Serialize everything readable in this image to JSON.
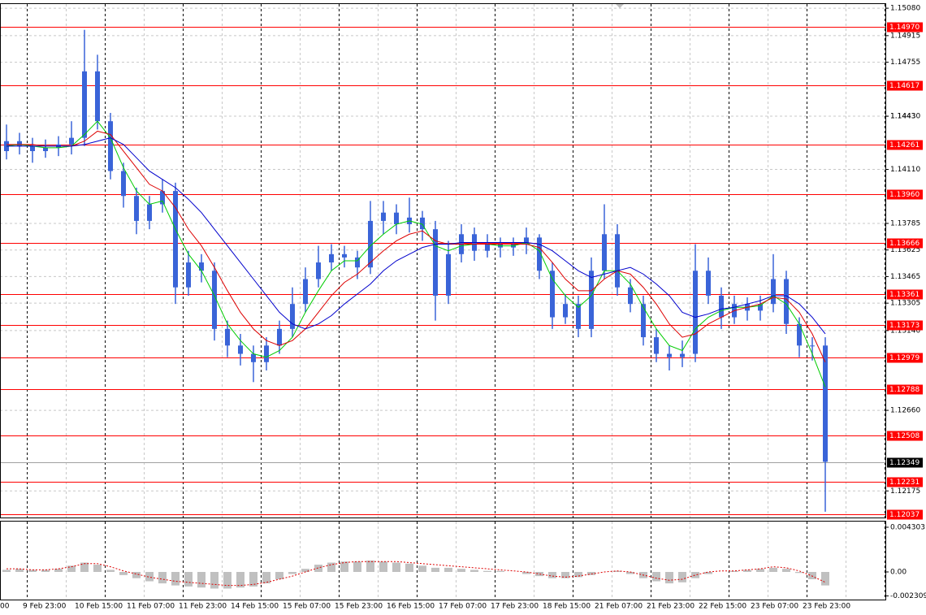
{
  "chart_data": [
    {
      "type": "candlestick",
      "open": [
        1.1422,
        1.1428,
        1.1425,
        1.1422,
        1.1424,
        1.1426,
        1.143,
        1.147,
        1.144,
        1.141,
        1.1395,
        1.138,
        1.139,
        1.1398,
        1.134,
        1.1355,
        1.135,
        1.1315,
        1.1305,
        1.13,
        1.1295,
        1.1305,
        1.1315,
        1.133,
        1.1345,
        1.1355,
        1.136,
        1.1358,
        1.1352,
        1.138,
        1.1385,
        1.1378,
        1.1382,
        1.1375,
        1.1335,
        1.136,
        1.1372,
        1.1362,
        1.1366,
        1.1364,
        1.1366,
        1.137,
        1.135,
        1.1322,
        1.133,
        1.1315,
        1.135,
        1.1372,
        1.134,
        1.133,
        1.131,
        1.13,
        1.1298,
        1.13,
        1.135,
        1.1335,
        1.1322,
        1.133,
        1.1326,
        1.133,
        1.1345,
        1.1318,
        1.1305,
        1.1305
      ],
      "high": [
        1.1438,
        1.1433,
        1.143,
        1.1429,
        1.1431,
        1.144,
        1.1495,
        1.148,
        1.1445,
        1.1415,
        1.14,
        1.1395,
        1.1405,
        1.1403,
        1.1362,
        1.136,
        1.1355,
        1.132,
        1.1312,
        1.1305,
        1.131,
        1.132,
        1.134,
        1.1352,
        1.1365,
        1.1366,
        1.1365,
        1.1362,
        1.1392,
        1.1392,
        1.139,
        1.1394,
        1.1386,
        1.138,
        1.1368,
        1.1378,
        1.1376,
        1.1372,
        1.137,
        1.137,
        1.1376,
        1.1372,
        1.1355,
        1.1336,
        1.1335,
        1.1358,
        1.139,
        1.1378,
        1.1345,
        1.1335,
        1.1315,
        1.1305,
        1.1308,
        1.1366,
        1.1358,
        1.134,
        1.1335,
        1.1334,
        1.1335,
        1.136,
        1.135,
        1.1322,
        1.131,
        1.131
      ],
      "low": [
        1.1417,
        1.142,
        1.1415,
        1.1418,
        1.1419,
        1.142,
        1.1425,
        1.1435,
        1.1405,
        1.1388,
        1.1372,
        1.1375,
        1.1385,
        1.133,
        1.1335,
        1.1343,
        1.1308,
        1.1298,
        1.1293,
        1.1283,
        1.129,
        1.13,
        1.131,
        1.1325,
        1.134,
        1.135,
        1.1352,
        1.1345,
        1.1348,
        1.1372,
        1.1372,
        1.1373,
        1.1368,
        1.132,
        1.133,
        1.1355,
        1.1356,
        1.1358,
        1.1358,
        1.1359,
        1.136,
        1.1345,
        1.1315,
        1.1318,
        1.131,
        1.131,
        1.1345,
        1.1335,
        1.1325,
        1.1305,
        1.1295,
        1.129,
        1.1292,
        1.1295,
        1.133,
        1.1315,
        1.1318,
        1.132,
        1.132,
        1.1325,
        1.1312,
        1.1298,
        1.1296,
        1.1205
      ],
      "close": [
        1.1428,
        1.1425,
        1.1422,
        1.1424,
        1.1426,
        1.143,
        1.147,
        1.144,
        1.141,
        1.1395,
        1.138,
        1.139,
        1.1398,
        1.134,
        1.1355,
        1.135,
        1.1315,
        1.1305,
        1.13,
        1.1295,
        1.1305,
        1.1315,
        1.133,
        1.1345,
        1.1355,
        1.136,
        1.1358,
        1.1352,
        1.138,
        1.1385,
        1.1378,
        1.1382,
        1.1375,
        1.1335,
        1.136,
        1.1372,
        1.1362,
        1.1366,
        1.1364,
        1.1366,
        1.137,
        1.135,
        1.1322,
        1.133,
        1.1315,
        1.135,
        1.1372,
        1.134,
        1.133,
        1.131,
        1.13,
        1.1298,
        1.13,
        1.135,
        1.1335,
        1.1322,
        1.133,
        1.1326,
        1.133,
        1.1345,
        1.1318,
        1.1305,
        1.1305,
        1.1235
      ],
      "color": "#3a64d8",
      "overlays": [
        {
          "color": "#00cc00",
          "values": [
            1.1425,
            1.1426,
            1.1425,
            1.1424,
            1.1424,
            1.1425,
            1.1432,
            1.144,
            1.143,
            1.1412,
            1.1398,
            1.139,
            1.1392,
            1.1375,
            1.136,
            1.135,
            1.1335,
            1.1318,
            1.1308,
            1.13,
            1.1298,
            1.1302,
            1.131,
            1.1325,
            1.1338,
            1.135,
            1.1356,
            1.1356,
            1.1365,
            1.1372,
            1.1378,
            1.138,
            1.1378,
            1.1365,
            1.1362,
            1.1365,
            1.1366,
            1.1366,
            1.1365,
            1.1365,
            1.1367,
            1.1362,
            1.1345,
            1.1335,
            1.1328,
            1.1335,
            1.135,
            1.135,
            1.1342,
            1.1328,
            1.1315,
            1.1305,
            1.1302,
            1.1315,
            1.1322,
            1.1326,
            1.1328,
            1.1328,
            1.1329,
            1.1335,
            1.133,
            1.1318,
            1.13,
            1.128
          ]
        },
        {
          "color": "#dd0000",
          "values": [
            1.1426,
            1.1426,
            1.1426,
            1.1425,
            1.1425,
            1.1425,
            1.1428,
            1.1434,
            1.1432,
            1.1422,
            1.1412,
            1.1402,
            1.1398,
            1.1388,
            1.1375,
            1.1365,
            1.1352,
            1.1338,
            1.1325,
            1.1315,
            1.1308,
            1.1305,
            1.1308,
            1.1315,
            1.1325,
            1.1335,
            1.1343,
            1.1348,
            1.1355,
            1.1362,
            1.1368,
            1.1372,
            1.1374,
            1.1368,
            1.1366,
            1.1366,
            1.1366,
            1.1366,
            1.1366,
            1.1366,
            1.1366,
            1.1364,
            1.1355,
            1.1345,
            1.1338,
            1.1338,
            1.1345,
            1.135,
            1.1348,
            1.134,
            1.133,
            1.1318,
            1.131,
            1.1312,
            1.1318,
            1.1322,
            1.1326,
            1.1328,
            1.133,
            1.1334,
            1.1333,
            1.1325,
            1.1312,
            1.1295
          ]
        },
        {
          "color": "#0000cc",
          "values": [
            1.1425,
            1.1425,
            1.1425,
            1.1425,
            1.1425,
            1.1425,
            1.1426,
            1.1428,
            1.143,
            1.1426,
            1.1418,
            1.141,
            1.1405,
            1.14,
            1.1393,
            1.1385,
            1.1375,
            1.1365,
            1.1355,
            1.1345,
            1.1335,
            1.1325,
            1.1318,
            1.1315,
            1.1318,
            1.1323,
            1.133,
            1.1336,
            1.1342,
            1.135,
            1.1356,
            1.136,
            1.1364,
            1.1366,
            1.1366,
            1.1367,
            1.1367,
            1.1367,
            1.1367,
            1.1367,
            1.1367,
            1.1366,
            1.1362,
            1.1356,
            1.135,
            1.1346,
            1.1348,
            1.135,
            1.1352,
            1.1348,
            1.1342,
            1.1335,
            1.1325,
            1.1322,
            1.1324,
            1.1327,
            1.1328,
            1.133,
            1.1332,
            1.1335,
            1.1335,
            1.133,
            1.1322,
            1.1312
          ]
        }
      ],
      "levels": {
        "color": "#ff0000",
        "values": [
          1.1497,
          1.14617,
          1.14261,
          1.1396,
          1.13666,
          1.13361,
          1.13173,
          1.12979,
          1.12788,
          1.12508,
          1.12231,
          1.12037
        ],
        "value_labels": [
          "1.14970",
          "1.14617",
          "1.14261",
          "1.13960",
          "1.13666",
          "1.13361",
          "1.13173",
          "1.12979",
          "1.12788",
          "1.12508",
          "1.12231",
          "1.12037"
        ]
      },
      "current_price": 1.12349,
      "ylim": [
        1.12015,
        1.15105
      ],
      "yticks": [
        {
          "value": 1.1508,
          "label": "1.15080"
        },
        1.14915,
        1.14755,
        1.1443,
        {
          "value": 1.1443,
          "label": "1.14430"
        },
        {
          "value": 1.1411,
          "label": "1.14110"
        },
        1.13785,
        1.13625,
        1.13465,
        1.13305,
        {
          "value": 1.1314,
          "label": "1.13140"
        },
        {
          "value": 1.1266,
          "label": "1.12660"
        },
        1.12175
      ],
      "xlabels": [
        "00",
        "9 Feb 23:00",
        "10 Feb 15:00",
        "11 Feb 07:00",
        "11 Feb 23:00",
        "14 Feb 15:00",
        "15 Feb 07:00",
        "15 Feb 23:00",
        "16 Feb 15:00",
        "17 Feb 07:00",
        "17 Feb 23:00",
        "18 Feb 15:00",
        "21 Feb 07:00",
        "21 Feb 23:00",
        "22 Feb 15:00",
        "23 Feb 07:00",
        "23 Feb 23:00"
      ]
    },
    {
      "type": "histogram",
      "values": [
        0.0002,
        0.0003,
        0.0002,
        0.0002,
        0.0003,
        0.0006,
        0.0009,
        0.0007,
        0.0002,
        -0.0003,
        -0.0006,
        -0.0009,
        -0.0011,
        -0.0013,
        -0.0014,
        -0.0015,
        -0.0016,
        -0.0016,
        -0.0015,
        -0.0014,
        -0.0011,
        -0.0007,
        -0.0002,
        0.0003,
        0.0007,
        0.0009,
        0.001,
        0.001,
        0.0011,
        0.001,
        0.0009,
        0.0008,
        0.0006,
        0.0004,
        0.0004,
        0.0003,
        0.0002,
        0.0001,
        0.0001,
        0,
        -0.0002,
        -0.0004,
        -0.0006,
        -0.0006,
        -0.0005,
        -0.0003,
        0,
        0.0001,
        -0.0002,
        -0.0006,
        -0.0009,
        -0.0011,
        -0.001,
        -0.0006,
        -0.0002,
        0,
        0.0001,
        0.0002,
        0.0003,
        0.0004,
        0.0003,
        -0.0001,
        -0.0007,
        -0.0013
      ],
      "color": "#c0c0c0",
      "signal": {
        "color": "#dd0000",
        "values": [
          0.0003,
          0.0003,
          0.0002,
          0.0002,
          0.0003,
          0.0005,
          0.0008,
          0.0008,
          0.0005,
          0.0001,
          -0.0002,
          -0.0005,
          -0.0007,
          -0.0009,
          -0.001,
          -0.0011,
          -0.0012,
          -0.0013,
          -0.0013,
          -0.0012,
          -0.001,
          -0.0007,
          -0.0004,
          0,
          0.0004,
          0.0007,
          0.0009,
          0.001,
          0.001,
          0.001,
          0.001,
          0.0009,
          0.0008,
          0.0007,
          0.0006,
          0.0005,
          0.0004,
          0.0003,
          0.0002,
          0.0001,
          0,
          -0.0002,
          -0.0004,
          -0.0005,
          -0.0004,
          -0.0002,
          0,
          0.0001,
          0,
          -0.0003,
          -0.0006,
          -0.0008,
          -0.0007,
          -0.0003,
          0,
          0.0001,
          0.0001,
          0.0002,
          0.0003,
          0.0005,
          0.0004,
          0.0001,
          -0.0004,
          -0.001
        ]
      },
      "ylim": [
        -0.00258,
        0.00477
      ],
      "yticks": [
        0.004303,
        {
          "value": 0,
          "label": "0.00"
        },
        -0.002309
      ]
    }
  ]
}
